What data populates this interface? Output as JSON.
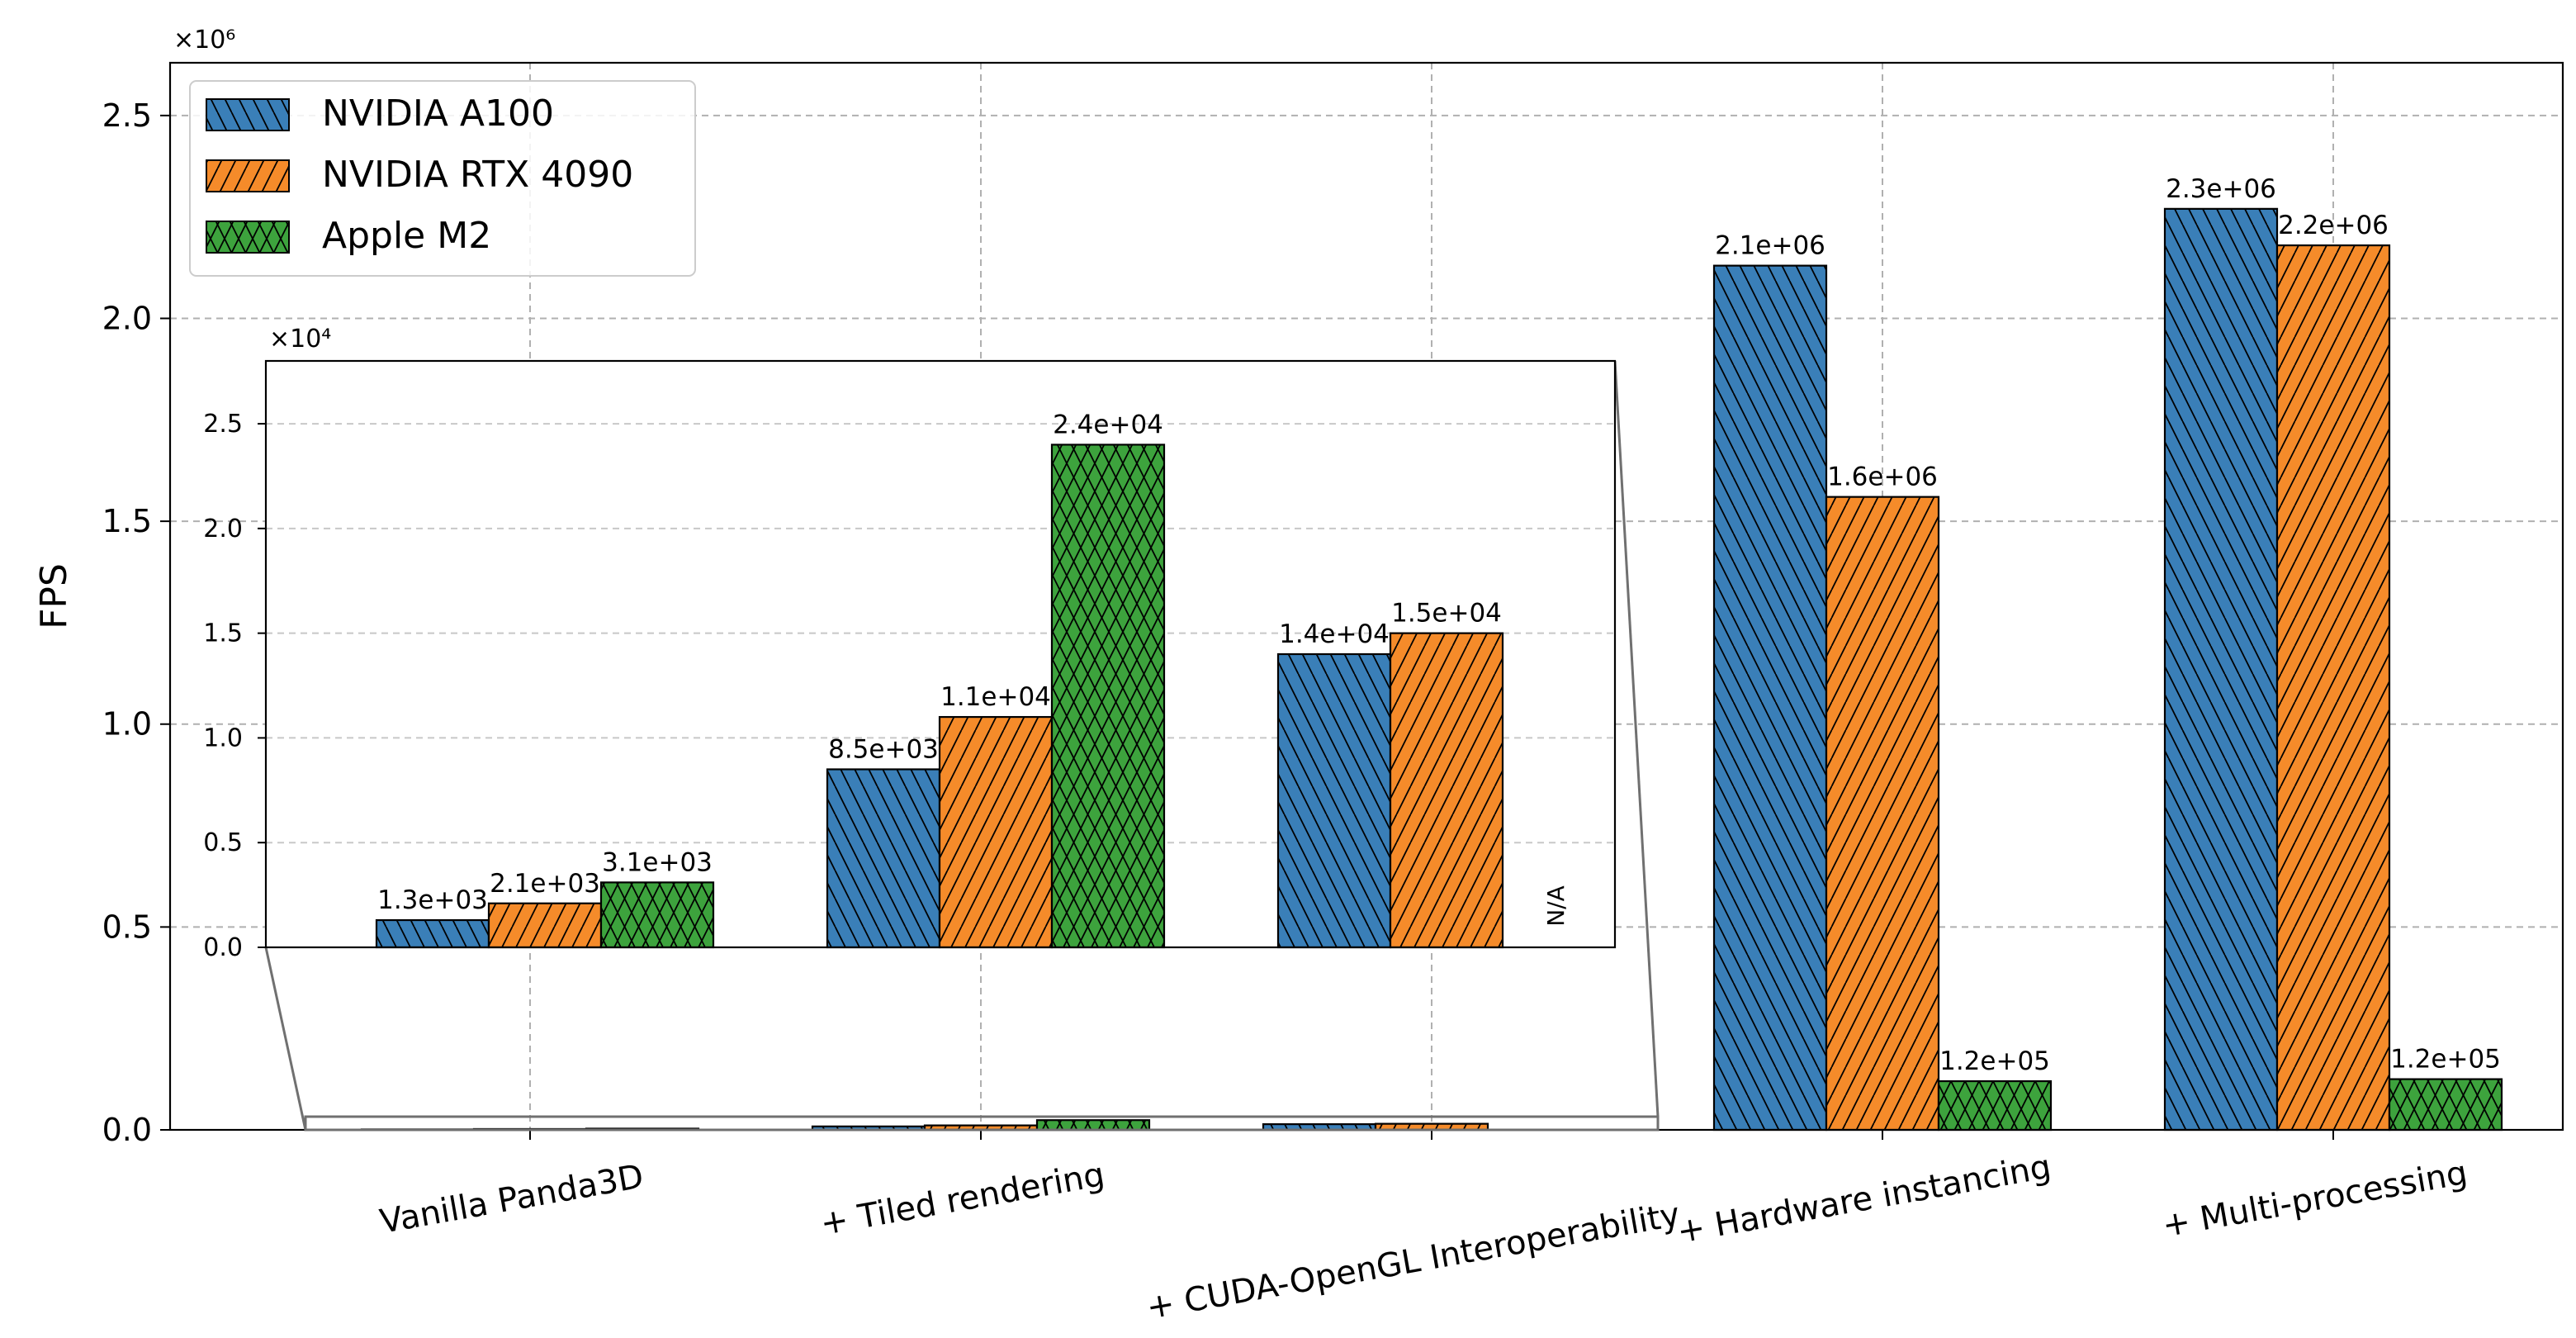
{
  "chart_data": {
    "type": "bar",
    "categories": [
      "Vanilla Panda3D",
      "+ Tiled rendering",
      "+ CUDA-OpenGL Interoperability",
      "+ Hardware instancing",
      "+ Multi-processing"
    ],
    "series": [
      {
        "name": "NVIDIA A100",
        "color": "#3a7fb8",
        "hatch": "backslash",
        "values": [
          1300,
          8500,
          14000,
          2130000,
          2270000
        ],
        "labels": [
          "1.3e+03",
          "8.5e+03",
          "1.4e+04",
          "2.1e+06",
          "2.3e+06"
        ]
      },
      {
        "name": "NVIDIA RTX 4090",
        "color": "#f58b2a",
        "hatch": "slash",
        "values": [
          2100,
          11000,
          15000,
          1560000,
          2180000
        ],
        "labels": [
          "2.1e+03",
          "1.1e+04",
          "1.5e+04",
          "1.6e+06",
          "2.2e+06"
        ]
      },
      {
        "name": "Apple M2",
        "color": "#3da33d",
        "hatch": "cross",
        "values": [
          3100,
          24000,
          null,
          120000,
          125000
        ],
        "labels": [
          "3.1e+03",
          "2.4e+04",
          "N/A",
          "1.2e+05",
          "1.2e+05"
        ]
      }
    ],
    "ylabel": "FPS",
    "xlabel": "",
    "ylim": [
      0,
      2630000
    ],
    "y_multiplier": "×10⁶",
    "yticks": [
      0.0,
      0.5,
      1.0,
      1.5,
      2.0,
      2.5
    ],
    "ytick_labels": [
      "0.0",
      "0.5",
      "1.0",
      "1.5",
      "2.0",
      "2.5"
    ],
    "grid": true,
    "legend_position": "top-left",
    "inset": {
      "categories_shown": [
        "Vanilla Panda3D",
        "+ Tiled rendering",
        "+ CUDA-OpenGL Interoperability"
      ],
      "ylim": [
        0,
        28000
      ],
      "y_multiplier": "×10⁴",
      "yticks": [
        0.0,
        0.5,
        1.0,
        1.5,
        2.0,
        2.5
      ],
      "ytick_labels": [
        "0.0",
        "0.5",
        "1.0",
        "1.5",
        "2.0",
        "2.5"
      ],
      "na_label": "N/A"
    }
  }
}
